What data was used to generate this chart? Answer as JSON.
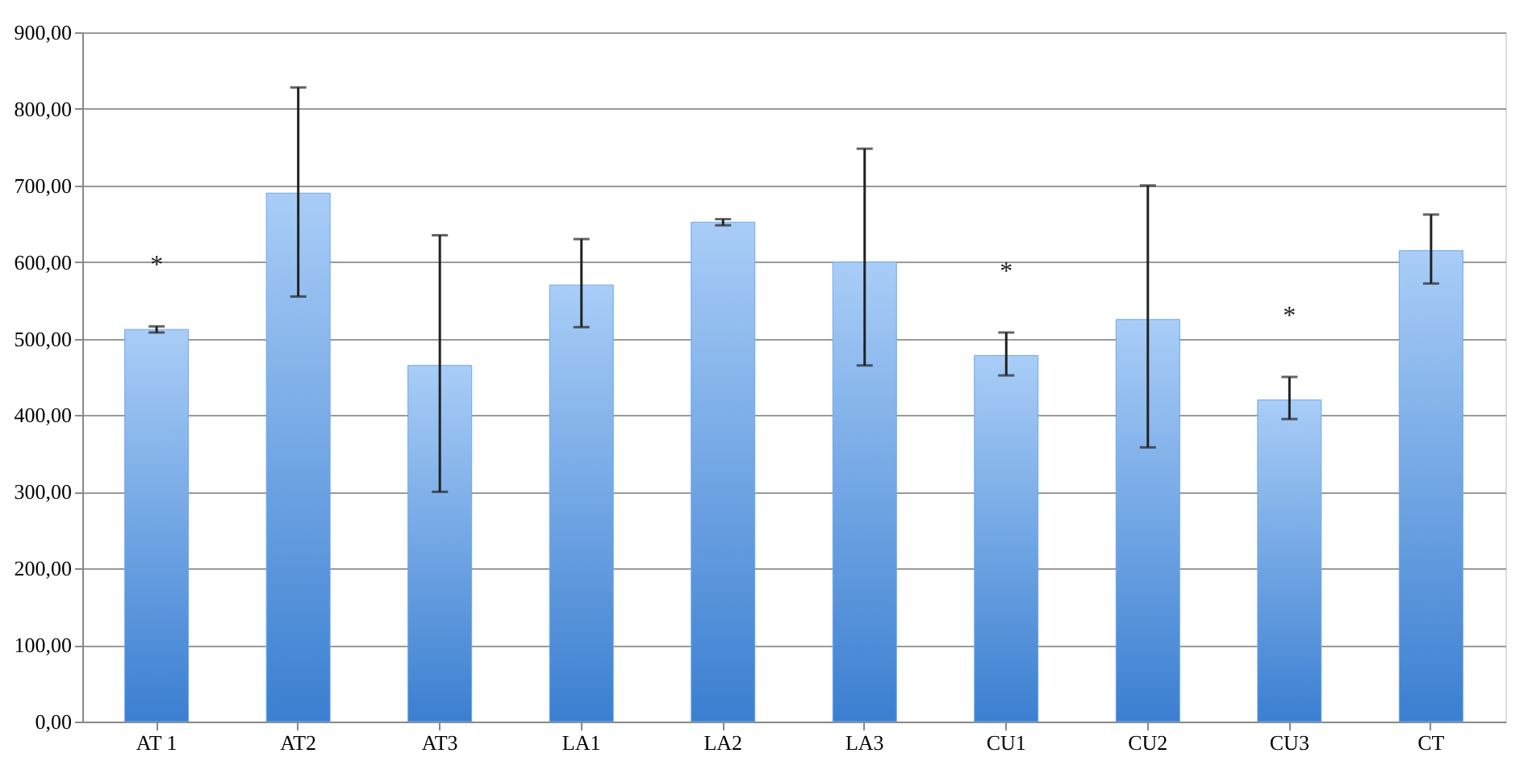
{
  "chart_data": {
    "type": "bar",
    "categories": [
      "AT 1",
      "AT2",
      "AT3",
      "LA1",
      "LA2",
      "LA3",
      "CU1",
      "CU2",
      "CU3",
      "CT"
    ],
    "values": [
      512,
      690,
      465,
      570,
      652,
      600,
      478,
      525,
      420,
      615
    ],
    "errors": [
      [
        508,
        516
      ],
      [
        555,
        828
      ],
      [
        300,
        635
      ],
      [
        515,
        630
      ],
      [
        648,
        656
      ],
      [
        465,
        748
      ],
      [
        452,
        508
      ],
      [
        358,
        700
      ],
      [
        395,
        450
      ],
      [
        572,
        662
      ]
    ],
    "color": "#6fa8e8",
    "ylim": [
      0,
      900
    ],
    "yticks": [
      {
        "value": 0,
        "label": "0,00"
      },
      {
        "value": 100,
        "label": "100,00"
      },
      {
        "value": 200,
        "label": "200,00"
      },
      {
        "value": 300,
        "label": "300,00"
      },
      {
        "value": 400,
        "label": "400,00"
      },
      {
        "value": 500,
        "label": "500,00"
      },
      {
        "value": 600,
        "label": "600,00"
      },
      {
        "value": 700,
        "label": "700,00"
      },
      {
        "value": 800,
        "label": "800,00"
      },
      {
        "value": 900,
        "label": "900,00"
      }
    ],
    "grid": "y",
    "annotations": [
      {
        "text": "*",
        "x": "AT 1",
        "y": 516
      },
      {
        "text": "*",
        "x": "CU1",
        "y": 508
      },
      {
        "text": "*",
        "x": "CU3",
        "y": 450
      }
    ]
  }
}
